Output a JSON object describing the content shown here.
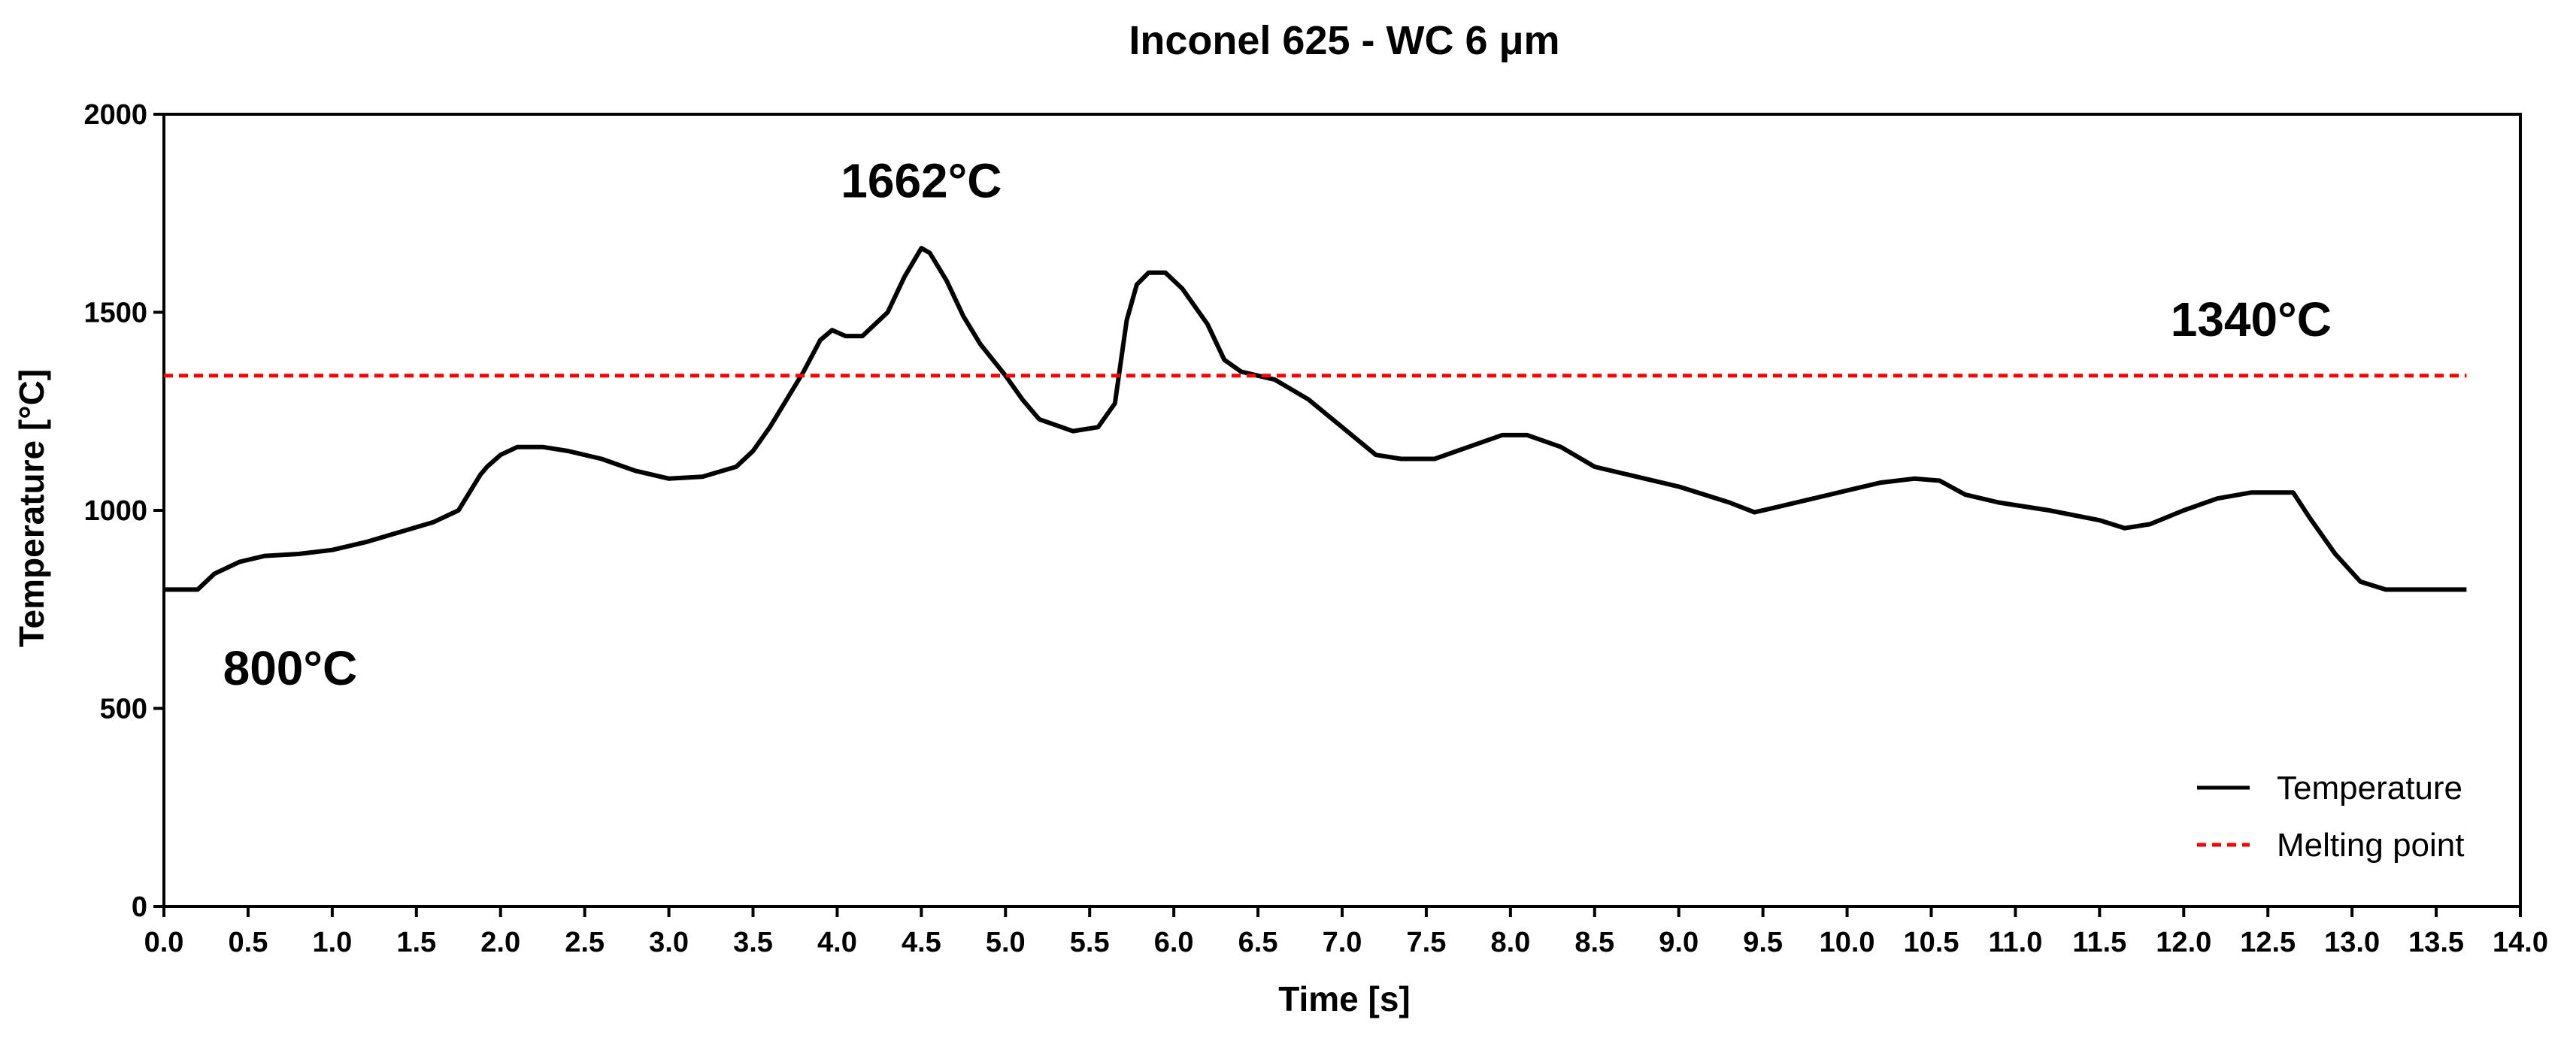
{
  "chart_data": {
    "type": "line",
    "title": "Inconel 625 - WC 6 μm",
    "xlabel": "Time [s]",
    "ylabel": "Temperature [°C]",
    "xlim": [
      0,
      14
    ],
    "ylim": [
      0,
      2000
    ],
    "x_ticks": [
      "0.0",
      "0.5",
      "1.0",
      "1.5",
      "2.0",
      "2.5",
      "3.0",
      "3.5",
      "4.0",
      "4.5",
      "5.0",
      "5.5",
      "6.0",
      "6.5",
      "7.0",
      "7.5",
      "8.0",
      "8.5",
      "9.0",
      "9.5",
      "10.0",
      "10.5",
      "11.0",
      "11.5",
      "12.0",
      "12.5",
      "13.0",
      "13.5",
      "14.0"
    ],
    "y_ticks": [
      "0",
      "500",
      "1000",
      "1500",
      "2000"
    ],
    "grid": false,
    "legend_position": "bottom-right",
    "series": [
      {
        "name": "Temperature",
        "style": "solid",
        "color": "#000000",
        "x": [
          0.0,
          0.2,
          0.3,
          0.45,
          0.6,
          0.8,
          1.0,
          1.2,
          1.4,
          1.6,
          1.75,
          1.88,
          1.92,
          2.0,
          2.1,
          2.25,
          2.4,
          2.6,
          2.8,
          3.0,
          3.2,
          3.4,
          3.5,
          3.6,
          3.7,
          3.8,
          3.9,
          3.97,
          4.05,
          4.15,
          4.3,
          4.4,
          4.5,
          4.55,
          4.65,
          4.75,
          4.85,
          5.0,
          5.1,
          5.2,
          5.4,
          5.55,
          5.65,
          5.72,
          5.78,
          5.85,
          5.95,
          6.05,
          6.2,
          6.3,
          6.4,
          6.5,
          6.6,
          6.8,
          7.0,
          7.2,
          7.35,
          7.55,
          7.75,
          7.95,
          8.1,
          8.3,
          8.5,
          8.7,
          9.0,
          9.3,
          9.45,
          9.55,
          9.8,
          10.0,
          10.2,
          10.4,
          10.55,
          10.7,
          10.9,
          11.2,
          11.5,
          11.65,
          11.8,
          12.0,
          12.2,
          12.4,
          12.55,
          12.65,
          12.75,
          12.9,
          13.05,
          13.2,
          13.68
        ],
        "y": [
          800,
          800,
          840,
          870,
          885,
          890,
          900,
          920,
          945,
          970,
          1000,
          1090,
          1110,
          1140,
          1160,
          1160,
          1150,
          1130,
          1100,
          1080,
          1085,
          1110,
          1150,
          1210,
          1280,
          1350,
          1430,
          1455,
          1440,
          1440,
          1500,
          1590,
          1662,
          1650,
          1580,
          1490,
          1420,
          1340,
          1280,
          1230,
          1200,
          1210,
          1270,
          1480,
          1570,
          1600,
          1600,
          1560,
          1470,
          1380,
          1350,
          1340,
          1330,
          1280,
          1210,
          1140,
          1130,
          1130,
          1160,
          1190,
          1190,
          1160,
          1110,
          1090,
          1060,
          1020,
          995,
          1005,
          1030,
          1050,
          1070,
          1080,
          1075,
          1040,
          1020,
          1000,
          975,
          955,
          965,
          1000,
          1030,
          1045,
          1045,
          1045,
          980,
          890,
          820,
          800,
          800
        ]
      },
      {
        "name": "Melting point",
        "style": "dashed",
        "color": "#ff0000",
        "x": [
          0,
          13.68
        ],
        "y": [
          1340,
          1340
        ]
      }
    ],
    "annotations": [
      {
        "text": "1662°C",
        "x": 4.5,
        "y": 1790
      },
      {
        "text": "1340°C",
        "x": 12.4,
        "y": 1440
      },
      {
        "text": "800°C",
        "x": 0.75,
        "y": 560
      }
    ],
    "legend": [
      "Temperature",
      "Melting point"
    ]
  }
}
